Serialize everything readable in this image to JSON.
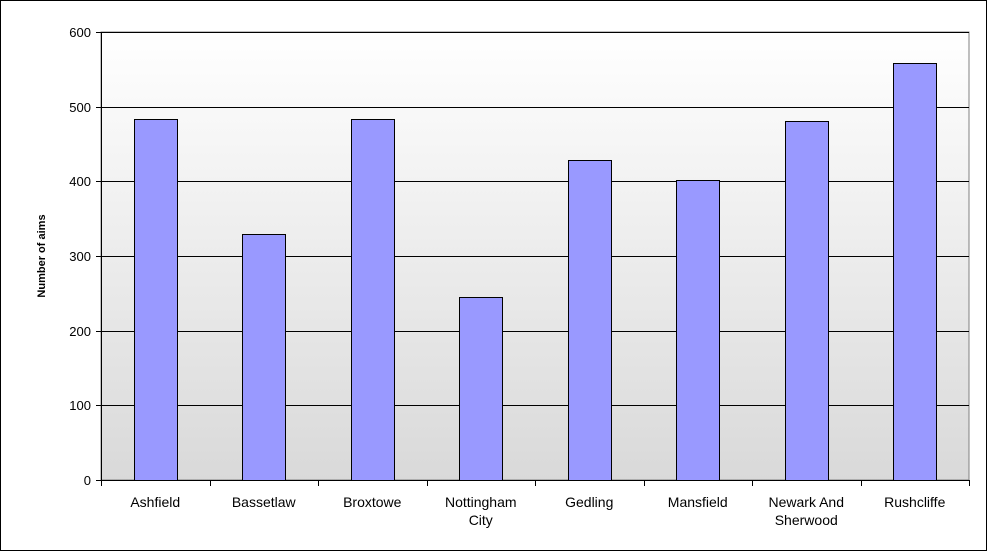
{
  "chart_data": {
    "type": "bar",
    "categories": [
      [
        "Ashfield"
      ],
      [
        "Bassetlaw"
      ],
      [
        "Broxtowe"
      ],
      [
        "Nottingham",
        "City"
      ],
      [
        "Gedling"
      ],
      [
        "Mansfield"
      ],
      [
        "Newark And",
        "Sherwood"
      ],
      [
        "Rushcliffe"
      ]
    ],
    "values": [
      483,
      330,
      483,
      245,
      428,
      402,
      481,
      559
    ],
    "title": "",
    "xlabel": "",
    "ylabel": "Number of aims",
    "ylim": [
      0,
      600
    ],
    "yticks": [
      0,
      100,
      200,
      300,
      400,
      500,
      600
    ],
    "grid": true,
    "legend": "none",
    "colors": {
      "bar_fill": "#9999ff",
      "bar_stroke": "#000000",
      "plot_bg_top": "#ffffff",
      "plot_bg_bottom": "#d9d9d9",
      "grid": "#000000"
    }
  }
}
